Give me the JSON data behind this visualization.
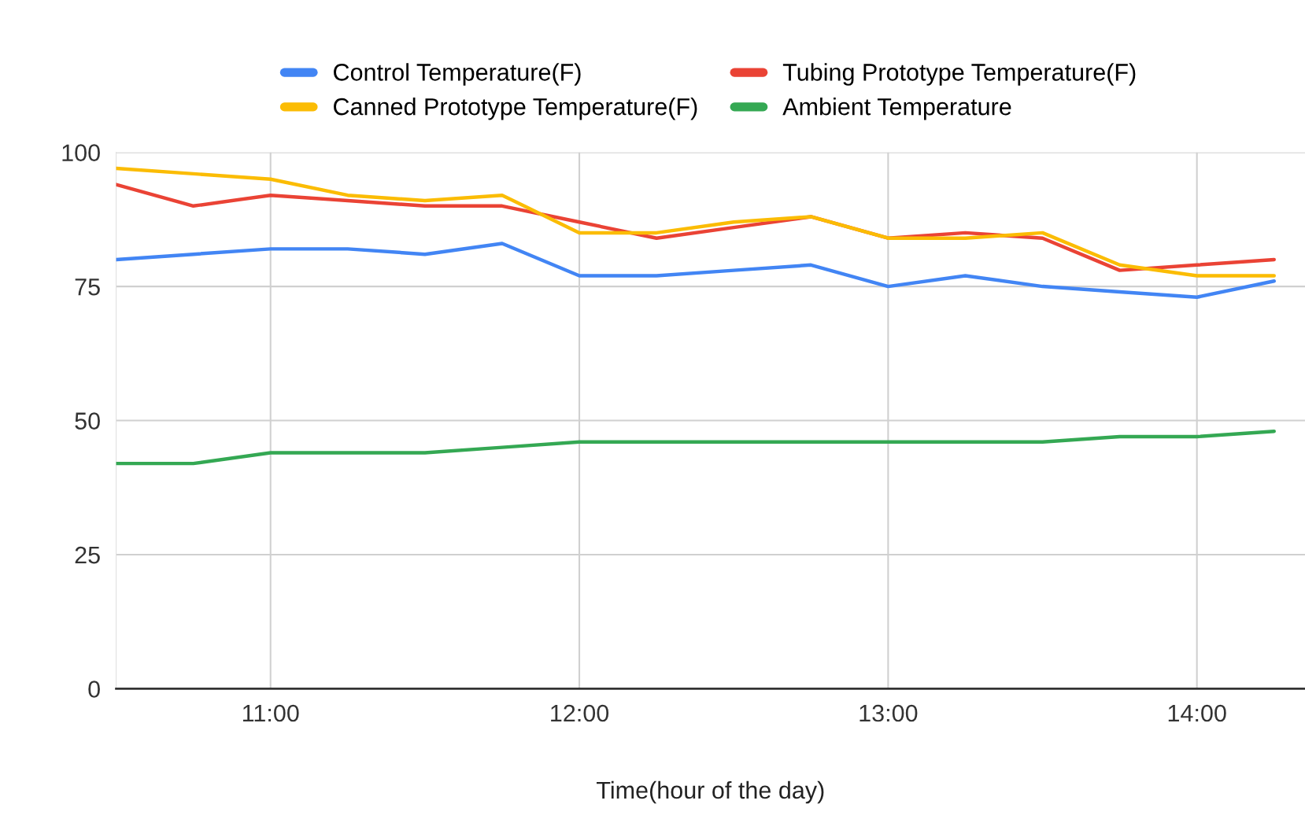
{
  "chart_data": {
    "type": "line",
    "xlabel": "Time(hour of the day)",
    "x": [
      10.5,
      10.75,
      11,
      11.25,
      11.5,
      11.75,
      12,
      12.25,
      12.5,
      12.75,
      13,
      13.25,
      13.5,
      13.75,
      14,
      14.25
    ],
    "series": [
      {
        "name": "Control Temperature(F)",
        "color": "#4285f4",
        "values": [
          80,
          81,
          82,
          82,
          81,
          83,
          77,
          77,
          78,
          79,
          75,
          77,
          75,
          74,
          73,
          76
        ]
      },
      {
        "name": "Tubing Prototype Temperature(F)",
        "color": "#ea4335",
        "values": [
          94,
          90,
          92,
          91,
          90,
          90,
          87,
          84,
          86,
          88,
          84,
          85,
          84,
          78,
          79,
          80
        ]
      },
      {
        "name": "Canned Prototype Temperature(F)",
        "color": "#fbbc04",
        "values": [
          97,
          96,
          95,
          92,
          91,
          92,
          85,
          85,
          87,
          88,
          84,
          84,
          85,
          79,
          77,
          77
        ]
      },
      {
        "name": "Ambient Temperature",
        "color": "#34a853",
        "values": [
          42,
          42,
          44,
          44,
          44,
          45,
          46,
          46,
          46,
          46,
          46,
          46,
          46,
          47,
          47,
          48
        ]
      }
    ],
    "xlim": [
      10.5,
      14.35
    ],
    "xticks": [
      {
        "value": 11,
        "label": "11:00"
      },
      {
        "value": 12,
        "label": "12:00"
      },
      {
        "value": 13,
        "label": "13:00"
      },
      {
        "value": 14,
        "label": "14:00"
      }
    ],
    "ylim": [
      0,
      100
    ],
    "yticks": [
      0,
      25,
      50,
      75,
      100
    ],
    "grid": true,
    "legend": "top",
    "marker": "none",
    "line_style": "solid"
  }
}
